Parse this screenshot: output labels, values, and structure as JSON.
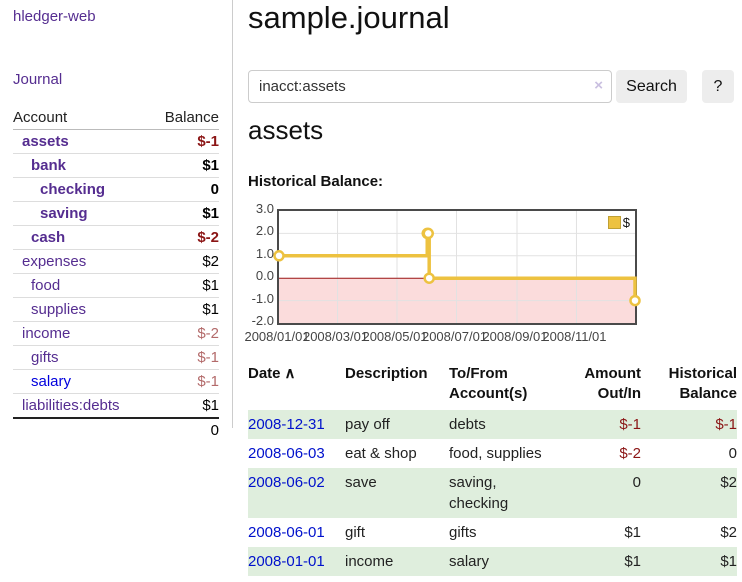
{
  "sidebar": {
    "brand": "hledger-web",
    "journal_label": "Journal",
    "accounts_table": {
      "col_account": "Account",
      "col_balance": "Balance",
      "rows": [
        {
          "name": "assets",
          "balance": "$-1",
          "indent": 0,
          "bold": true,
          "value_class": "neg-strong",
          "link_color": "purple"
        },
        {
          "name": "bank",
          "balance": "$1",
          "indent": 1,
          "bold": true,
          "value_class": "",
          "link_color": "purple"
        },
        {
          "name": "checking",
          "balance": "0",
          "indent": 2,
          "bold": true,
          "value_class": "",
          "link_color": "purple"
        },
        {
          "name": "saving",
          "balance": "$1",
          "indent": 2,
          "bold": true,
          "value_class": "",
          "link_color": "purple"
        },
        {
          "name": "cash",
          "balance": "$-2",
          "indent": 1,
          "bold": true,
          "value_class": "neg-strong",
          "link_color": "purple"
        },
        {
          "name": "expenses",
          "balance": "$2",
          "indent": 0,
          "bold": false,
          "value_class": "",
          "link_color": "purple"
        },
        {
          "name": "food",
          "balance": "$1",
          "indent": 1,
          "bold": false,
          "value_class": "",
          "link_color": "purple"
        },
        {
          "name": "supplies",
          "balance": "$1",
          "indent": 1,
          "bold": false,
          "value_class": "",
          "link_color": "purple"
        },
        {
          "name": "income",
          "balance": "$-2",
          "indent": 0,
          "bold": false,
          "value_class": "neg-muted",
          "link_color": "purple"
        },
        {
          "name": "gifts",
          "balance": "$-1",
          "indent": 1,
          "bold": false,
          "value_class": "neg-muted",
          "link_color": "purple"
        },
        {
          "name": "salary",
          "balance": "$-1",
          "indent": 1,
          "bold": false,
          "value_class": "neg-muted",
          "link_color": "blue"
        },
        {
          "name": "liabilities:debts",
          "balance": "$1",
          "indent": 0,
          "bold": false,
          "value_class": "",
          "link_color": "purple"
        }
      ],
      "total": "0"
    }
  },
  "main": {
    "title": "sample.journal",
    "search": {
      "value": "inacct:assets",
      "clear_glyph": "×",
      "button_label": "Search",
      "help_label": "?"
    },
    "account_heading": "assets",
    "chart_heading": "Historical Balance:",
    "register": {
      "headers": {
        "date": "Date",
        "sort_glyph": "∧",
        "description": "Description",
        "accounts": "To/From Account(s)",
        "amount": "Amount Out/In",
        "balance": "Historical Balance"
      },
      "rows": [
        {
          "date": "2008-12-31",
          "description": "pay off",
          "accounts": "debts",
          "amount": "$-1",
          "amount_neg": true,
          "balance": "$-1",
          "balance_neg": true
        },
        {
          "date": "2008-06-03",
          "description": "eat & shop",
          "accounts": "food, supplies",
          "amount": "$-2",
          "amount_neg": true,
          "balance": "0",
          "balance_neg": false
        },
        {
          "date": "2008-06-02",
          "description": "save",
          "accounts": "saving, checking",
          "amount": "0",
          "amount_neg": false,
          "balance": "$2",
          "balance_neg": false
        },
        {
          "date": "2008-06-01",
          "description": "gift",
          "accounts": "gifts",
          "amount": "$1",
          "amount_neg": false,
          "balance": "$2",
          "balance_neg": false
        },
        {
          "date": "2008-01-01",
          "description": "income",
          "accounts": "salary",
          "amount": "$1",
          "amount_neg": false,
          "balance": "$1",
          "balance_neg": false
        }
      ]
    }
  },
  "chart_data": {
    "type": "line",
    "title": "Historical Balance",
    "series": [
      {
        "name": "$",
        "step": true,
        "color": "#edc240",
        "points": [
          {
            "date": "2008-01-01",
            "value": 1,
            "x": 0.0
          },
          {
            "date": "2008-06-01",
            "value": 2,
            "x": 0.4164
          },
          {
            "date": "2008-06-02",
            "value": 2,
            "x": 0.4192
          },
          {
            "date": "2008-06-03",
            "value": 0,
            "x": 0.4219
          },
          {
            "date": "2008-12-31",
            "value": -1,
            "x": 1.0
          }
        ]
      }
    ],
    "ylim": [
      -2,
      3
    ],
    "ytick_labels": [
      "3.0",
      "2.0",
      "1.0",
      "0.0",
      "-1.0",
      "-2.0"
    ],
    "yticks": [
      3,
      2,
      1,
      0,
      -1,
      -2
    ],
    "xticks": [
      {
        "label": "2008/01/01",
        "x": 0.0
      },
      {
        "label": "2008/03/01",
        "x": 0.1644
      },
      {
        "label": "2008/05/01",
        "x": 0.3315
      },
      {
        "label": "2008/07/01",
        "x": 0.4986
      },
      {
        "label": "2008/09/01",
        "x": 0.6685
      },
      {
        "label": "2008/11/01",
        "x": 0.8356
      }
    ],
    "grid": true,
    "legend": {
      "position": "top-right",
      "label": "$"
    },
    "negative_region_color": "#fbdcdc",
    "zero_line_color": "#991414"
  },
  "colors": {
    "link_purple": "#552d90",
    "link_blue": "#0011cc",
    "negative_strong": "#8b1515",
    "negative_muted": "#b36a6a",
    "row_stripe_green": "#dfeedd",
    "series_gold": "#edc240",
    "button_gray": "#ededed"
  }
}
